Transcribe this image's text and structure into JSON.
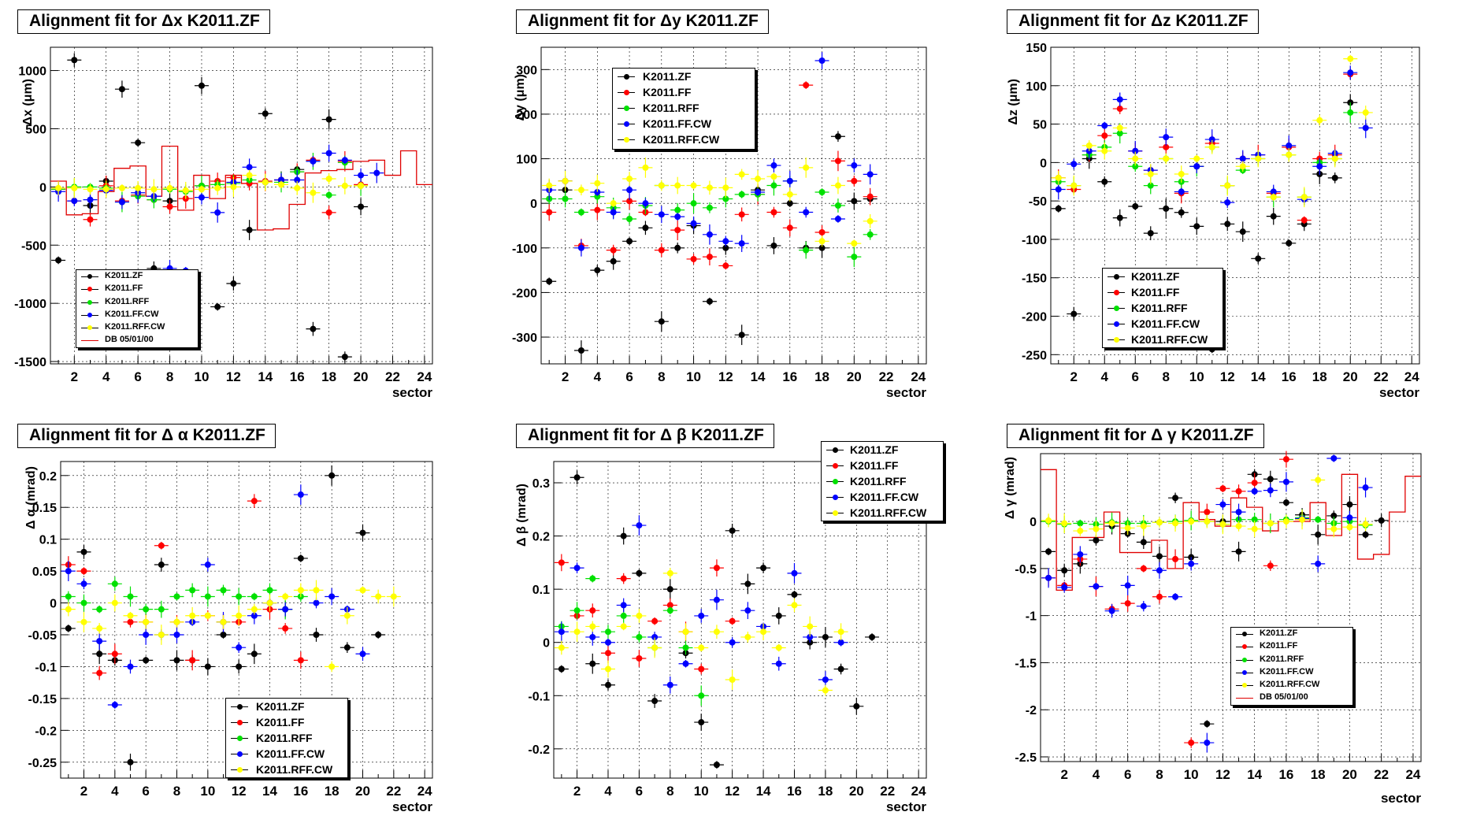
{
  "colors": {
    "K2011.ZF": "#000000",
    "K2011.FF": "#ff0000",
    "K2011.RFF": "#00e000",
    "K2011.FF.CW": "#0000ff",
    "K2011.RFF.CW": "#ffff00",
    "DB 05/01/00": "#e00000"
  },
  "series_names": [
    "K2011.ZF",
    "K2011.FF",
    "K2011.RFF",
    "K2011.FF.CW",
    "K2011.RFF.CW"
  ],
  "db_name": "DB 05/01/00",
  "chart_data": [
    {
      "type": "scatter",
      "title": "Alignment fit for  Δx K2011.ZF",
      "xlabel": "sector",
      "ylabel": "Δx (μm)",
      "xlim": [
        0.5,
        24.5
      ],
      "ylim": [
        -1520,
        1200
      ],
      "yticks": [
        "1000",
        "500",
        "0",
        "-500",
        "-1000",
        "-1500"
      ],
      "ytick_values": [
        1000,
        500,
        0,
        -500,
        -1000,
        -1500
      ],
      "xticks": [
        "2",
        "4",
        "6",
        "8",
        "10",
        "12",
        "14",
        "16",
        "18",
        "20",
        "22",
        "24"
      ],
      "grid": true,
      "legend_position": "bottom-left",
      "series": [
        {
          "name": "K2011.ZF",
          "values": [
            -630,
            1090,
            -160,
            50,
            840,
            380,
            -700,
            -120,
            -740,
            870,
            -1030,
            -830,
            -370,
            630,
            60,
            150,
            -1220,
            580,
            -1460,
            -170
          ]
        },
        {
          "name": "K2011.FF",
          "values": [
            -20,
            -120,
            -280,
            10,
            -120,
            -70,
            -110,
            -170,
            -100,
            10,
            50,
            80,
            30,
            50,
            60,
            130,
            230,
            -220,
            220,
            20
          ]
        },
        {
          "name": "K2011.RFF",
          "values": [
            -20,
            0,
            0,
            -10,
            -130,
            -80,
            -110,
            -20,
            -40,
            10,
            20,
            30,
            60,
            40,
            40,
            130,
            220,
            -70,
            210,
            10
          ]
        },
        {
          "name": "K2011.FF.CW",
          "values": [
            -40,
            -120,
            -110,
            -30,
            -130,
            -50,
            -80,
            -700,
            -720,
            -90,
            -220,
            40,
            170,
            40,
            60,
            60,
            220,
            290,
            230,
            100,
            120
          ]
        },
        {
          "name": "K2011.RFF.CW",
          "values": [
            -10,
            -10,
            -20,
            -20,
            -10,
            -10,
            -20,
            -10,
            -30,
            -20,
            -10,
            0,
            100,
            40,
            20,
            -10,
            -50,
            70,
            10,
            10
          ]
        }
      ],
      "db": {
        "name": "DB 05/01/00",
        "values": [
          50,
          -240,
          -230,
          -40,
          160,
          180,
          -80,
          350,
          -200,
          100,
          -100,
          100,
          30,
          -370,
          -360,
          -150,
          120,
          140,
          150,
          220,
          230,
          100,
          310,
          20
        ]
      }
    },
    {
      "type": "scatter",
      "title": "Alignment fit for  Δy K2011.ZF",
      "xlabel": "sector",
      "ylabel": "Δy (μm)",
      "xlim": [
        0.5,
        24.5
      ],
      "ylim": [
        -360,
        350
      ],
      "yticks": [
        "300",
        "200",
        "100",
        "0",
        "-100",
        "-200",
        "-300"
      ],
      "ytick_values": [
        300,
        200,
        100,
        0,
        -100,
        -200,
        -300
      ],
      "xticks": [
        "2",
        "4",
        "6",
        "8",
        "10",
        "12",
        "14",
        "16",
        "18",
        "20",
        "22",
        "24"
      ],
      "grid": true,
      "legend_position": "top-left",
      "series": [
        {
          "name": "K2011.ZF",
          "values": [
            -175,
            30,
            -330,
            -150,
            -130,
            -85,
            -55,
            -265,
            -100,
            -50,
            -220,
            -100,
            -295,
            30,
            -95,
            0,
            -100,
            -100,
            150,
            5,
            10
          ]
        },
        {
          "name": "K2011.FF",
          "values": [
            -20,
            50,
            -95,
            -15,
            -105,
            5,
            -20,
            -105,
            -60,
            -125,
            -120,
            -140,
            -25,
            20,
            -20,
            -55,
            265,
            -65,
            95,
            50,
            15
          ]
        },
        {
          "name": "K2011.RFF",
          "values": [
            10,
            10,
            -20,
            15,
            -10,
            -35,
            -5,
            40,
            -15,
            0,
            -10,
            10,
            20,
            20,
            40,
            50,
            -105,
            25,
            -5,
            -120,
            -70
          ]
        },
        {
          "name": "K2011.FF.CW",
          "values": [
            30,
            50,
            -100,
            25,
            -20,
            30,
            0,
            -25,
            -30,
            -45,
            -70,
            -85,
            -90,
            25,
            85,
            50,
            -20,
            320,
            -35,
            85,
            65
          ]
        },
        {
          "name": "K2011.RFF.CW",
          "values": [
            40,
            50,
            30,
            45,
            0,
            55,
            80,
            40,
            40,
            40,
            35,
            35,
            65,
            55,
            60,
            20,
            80,
            -85,
            40,
            -90,
            -40
          ]
        }
      ]
    },
    {
      "type": "scatter",
      "title": "Alignment fit for  Δz K2011.ZF",
      "xlabel": "sector",
      "ylabel": "Δz (μm)",
      "xlim": [
        0.5,
        24.5
      ],
      "ylim": [
        -262,
        150
      ],
      "yticks": [
        "150",
        "100",
        "50",
        "0",
        "-50",
        "-100",
        "-150",
        "-200",
        "-250"
      ],
      "ytick_values": [
        150,
        100,
        50,
        0,
        -50,
        -100,
        -150,
        -200,
        -250
      ],
      "xticks": [
        "2",
        "4",
        "6",
        "8",
        "10",
        "12",
        "14",
        "16",
        "18",
        "20",
        "22",
        "24"
      ],
      "grid": true,
      "legend_position": "bottom-left",
      "series": [
        {
          "name": "K2011.ZF",
          "values": [
            -60,
            -197,
            5,
            -25,
            -72,
            -57,
            -92,
            -60,
            -65,
            -83,
            -243,
            -80,
            -90,
            -125,
            -70,
            -105,
            -80,
            -15,
            -20,
            78
          ]
        },
        {
          "name": "K2011.FF",
          "values": [
            -20,
            -35,
            10,
            35,
            70,
            15,
            -10,
            20,
            -40,
            -5,
            25,
            -30,
            5,
            10,
            -40,
            20,
            -75,
            5,
            10,
            115
          ]
        },
        {
          "name": "K2011.RFF",
          "values": [
            -25,
            -30,
            10,
            20,
            38,
            -5,
            -30,
            5,
            -25,
            -5,
            20,
            -30,
            -10,
            5,
            -45,
            10,
            -45,
            0,
            5,
            65
          ]
        },
        {
          "name": "K2011.FF.CW",
          "values": [
            -35,
            -2,
            15,
            48,
            82,
            15,
            -10,
            33,
            -38,
            -5,
            30,
            -52,
            5,
            10,
            -38,
            22,
            -48,
            -5,
            12,
            117,
            45
          ]
        },
        {
          "name": "K2011.RFF.CW",
          "values": [
            -20,
            -30,
            22,
            15,
            45,
            5,
            -15,
            5,
            -15,
            5,
            20,
            -30,
            -5,
            5,
            -45,
            10,
            -45,
            55,
            5,
            135,
            65
          ]
        }
      ]
    },
    {
      "type": "scatter",
      "title": "Alignment fit for  Δ α K2011.ZF",
      "xlabel": "sector",
      "ylabel": "Δ α (mrad)",
      "xlim": [
        0.5,
        24.5
      ],
      "ylim": [
        -0.275,
        0.222
      ],
      "yticks": [
        "0.2",
        "0.15",
        "0.1",
        "0.05",
        "0",
        "-0.05",
        "-0.1",
        "-0.15",
        "-0.2",
        "-0.25"
      ],
      "ytick_values": [
        0.2,
        0.15,
        0.1,
        0.05,
        0,
        -0.05,
        -0.1,
        -0.15,
        -0.2,
        -0.25
      ],
      "xticks": [
        "2",
        "4",
        "6",
        "8",
        "10",
        "12",
        "14",
        "16",
        "18",
        "20",
        "22",
        "24"
      ],
      "grid": true,
      "legend_position": "bottom-right",
      "series": [
        {
          "name": "K2011.ZF",
          "values": [
            -0.04,
            0.08,
            -0.08,
            -0.09,
            -0.25,
            -0.09,
            0.06,
            -0.09,
            -0.09,
            -0.1,
            -0.05,
            -0.1,
            -0.08,
            0,
            -0.01,
            0.07,
            -0.05,
            0.2,
            -0.07,
            0.11,
            -0.05
          ]
        },
        {
          "name": "K2011.FF",
          "values": [
            0.06,
            0.05,
            -0.11,
            -0.08,
            -0.03,
            -0.03,
            0.09,
            -0.03,
            -0.09,
            -0.02,
            -0.03,
            -0.03,
            0.16,
            -0.01,
            -0.04,
            -0.09
          ]
        },
        {
          "name": "K2011.RFF",
          "values": [
            0.01,
            0,
            -0.01,
            0.03,
            0.01,
            -0.01,
            -0.01,
            0.01,
            0.02,
            0.01,
            0.02,
            0.01,
            0.01,
            0.02,
            -0.01,
            0.01
          ]
        },
        {
          "name": "K2011.FF.CW",
          "values": [
            0.05,
            0.03,
            -0.06,
            -0.16,
            -0.1,
            -0.05,
            -0.05,
            -0.05,
            -0.03,
            0.06,
            -0.03,
            -0.07,
            -0.02,
            0,
            -0.01,
            0.17,
            0,
            0.01,
            -0.01,
            -0.08
          ]
        },
        {
          "name": "K2011.RFF.CW",
          "values": [
            -0.01,
            -0.03,
            -0.04,
            0,
            -0.02,
            -0.03,
            -0.05,
            -0.03,
            -0.02,
            -0.02,
            -0.03,
            -0.02,
            -0.01,
            0,
            0.01,
            0.02,
            0.02,
            -0.1,
            -0.02,
            0.02,
            0.01,
            0.01
          ]
        }
      ]
    },
    {
      "type": "scatter",
      "title": "Alignment fit for  Δ β K2011.ZF",
      "xlabel": "sector",
      "ylabel": "Δ β (mrad)",
      "xlim": [
        0.5,
        24.5
      ],
      "ylim": [
        -0.255,
        0.34
      ],
      "yticks": [
        "0.3",
        "0.2",
        "0.1",
        "0",
        "-0.1",
        "-0.2"
      ],
      "ytick_values": [
        0.3,
        0.2,
        0.1,
        0,
        -0.1,
        -0.2
      ],
      "xticks": [
        "2",
        "4",
        "6",
        "8",
        "10",
        "12",
        "14",
        "16",
        "18",
        "20",
        "22",
        "24"
      ],
      "grid": true,
      "legend_position": "top-right",
      "series": [
        {
          "name": "K2011.ZF",
          "values": [
            -0.05,
            0.31,
            -0.04,
            -0.08,
            0.2,
            0.13,
            -0.11,
            0.1,
            -0.02,
            -0.15,
            -0.23,
            0.21,
            0.11,
            0.14,
            0.05,
            0.09,
            0,
            0.01,
            -0.05,
            -0.12,
            0.01
          ]
        },
        {
          "name": "K2011.FF",
          "values": [
            0.15,
            0.05,
            0.06,
            -0.02,
            0.12,
            -0.03,
            0.04,
            0.07,
            0.02,
            -0.05,
            0.14,
            0.04
          ]
        },
        {
          "name": "K2011.RFF",
          "values": [
            0.03,
            0.06,
            0.12,
            0.02,
            0.05,
            0.01,
            -0.01,
            0.06,
            -0.01,
            -0.1
          ]
        },
        {
          "name": "K2011.FF.CW",
          "values": [
            0.02,
            0.14,
            0.01,
            0,
            0.07,
            0.22,
            0.01,
            -0.08,
            -0.04,
            0.05,
            0.08,
            0,
            0.06,
            0.03,
            -0.04,
            0.13,
            0.01,
            -0.07,
            0
          ]
        },
        {
          "name": "K2011.RFF.CW",
          "values": [
            -0.01,
            0.02,
            0.03,
            -0.05,
            0.03,
            0.05,
            -0.01,
            0.13,
            0.02,
            -0.01,
            0.02,
            -0.07,
            0.01,
            0.02,
            -0.01,
            0.07,
            0.03,
            -0.09,
            0.02
          ]
        }
      ]
    },
    {
      "type": "scatter",
      "title": "Alignment fit for  Δ γ K2011.ZF",
      "xlabel": "sector",
      "ylabel": "Δ γ (mrad)",
      "xlim": [
        0.5,
        24.5
      ],
      "ylim": [
        -2.55,
        0.72
      ],
      "yticks": [
        "0",
        "-0.5",
        "-1",
        "-1.5",
        "-2",
        "-2.5"
      ],
      "ytick_values": [
        0,
        -0.5,
        -1,
        -1.5,
        -2,
        -2.5
      ],
      "xticks": [
        "2",
        "4",
        "6",
        "8",
        "10",
        "12",
        "14",
        "16",
        "18",
        "20",
        "22",
        "24"
      ],
      "grid": true,
      "legend_position": "bottom-center",
      "series": [
        {
          "name": "K2011.ZF",
          "values": [
            -0.32,
            -0.52,
            -0.45,
            -0.2,
            -0.05,
            -0.13,
            -0.22,
            -0.37,
            0.25,
            -0.38,
            -2.15,
            0,
            -0.32,
            0.5,
            0.45,
            0.2,
            0.07,
            -0.14,
            0.06,
            0.18,
            -0.14,
            0.01
          ]
        },
        {
          "name": "K2011.FF",
          "values": [
            -0.6,
            -0.68,
            -0.4,
            -0.69,
            -0.93,
            -0.87,
            -0.5,
            -0.8,
            -0.4,
            -2.35,
            0.1,
            0.35,
            0.32,
            0.41,
            -0.47,
            0.66,
            0.02
          ]
        },
        {
          "name": "K2011.RFF",
          "values": [
            0,
            -0.03,
            -0.02,
            -0.03,
            -0.01,
            -0.02,
            -0.02,
            -0.01,
            0,
            0.01,
            0,
            -0.03,
            0.02,
            0.02,
            -0.02,
            0.02,
            0.04,
            0.02,
            -0.02,
            0,
            -0.04
          ]
        },
        {
          "name": "K2011.FF.CW",
          "values": [
            -0.6,
            -0.7,
            -0.35,
            -0.69,
            -0.95,
            -0.68,
            -0.9,
            -0.52,
            -0.8,
            -0.45,
            -2.35,
            0.18,
            0.1,
            0.32,
            0.33,
            0.42,
            0.03,
            -0.45,
            0.67,
            0.04,
            0.36
          ]
        },
        {
          "name": "K2011.RFF.CW",
          "values": [
            0.01,
            -0.02,
            -0.1,
            -0.08,
            -0.02,
            -0.07,
            -0.05,
            -0.01,
            -0.02,
            0,
            0,
            -0.03,
            -0.05,
            -0.08,
            -0.02,
            0,
            0.02,
            0.44,
            -0.08,
            -0.06,
            -0.03
          ]
        }
      ],
      "db": {
        "name": "DB 05/01/00",
        "values": [
          0.55,
          -0.73,
          -0.17,
          -0.17,
          0.1,
          -0.33,
          -0.33,
          -0.2,
          -0.5,
          0.2,
          0.02,
          -0.05,
          0.25,
          0.15,
          -0.1,
          0,
          0,
          0.2,
          -0.15,
          0.5,
          -0.4,
          -0.35,
          0.1,
          0.48
        ]
      }
    }
  ]
}
